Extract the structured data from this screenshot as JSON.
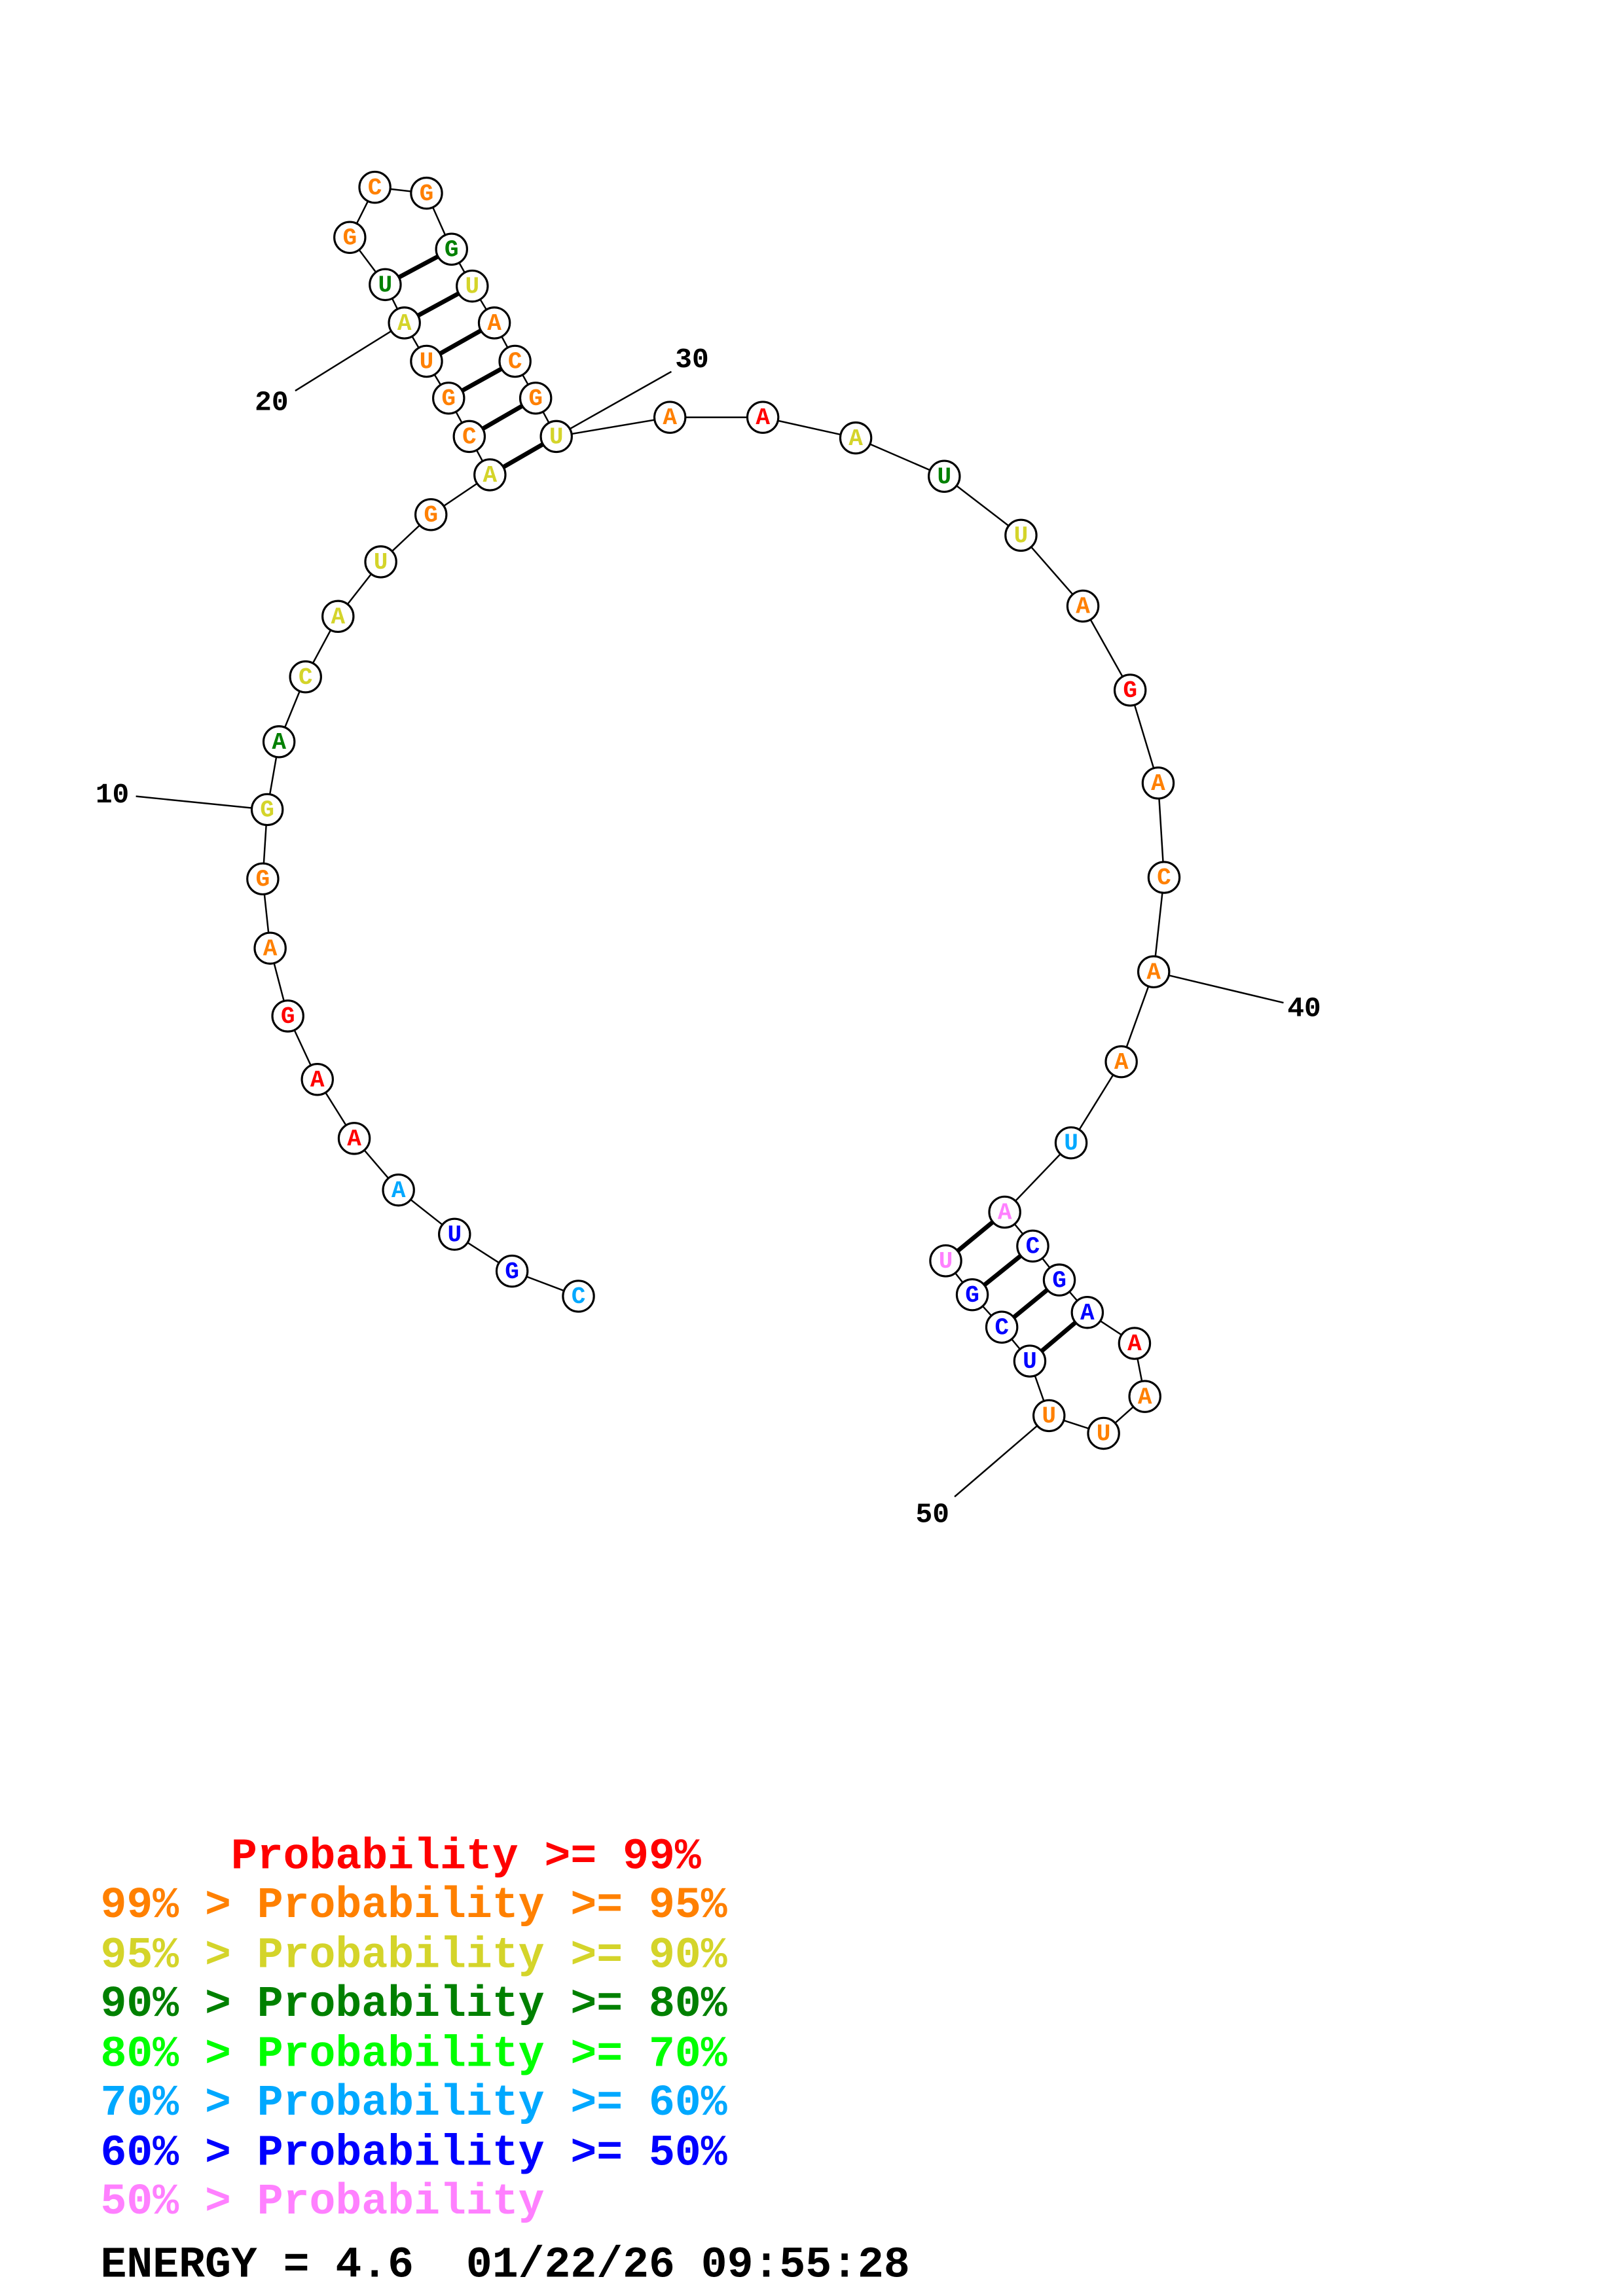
{
  "colors": {
    "p99": "#ff0000",
    "p95": "#ff8000",
    "p90": "#d4d42a",
    "p80": "#008000",
    "p70": "#00ff00",
    "p60": "#00a8ff",
    "p50": "#0000ff",
    "plow": "#ff80ff"
  },
  "sequence": [
    {
      "base": "C",
      "cls": "p60"
    },
    {
      "base": "G",
      "cls": "p50"
    },
    {
      "base": "U",
      "cls": "p50"
    },
    {
      "base": "A",
      "cls": "p60"
    },
    {
      "base": "A",
      "cls": "p99"
    },
    {
      "base": "A",
      "cls": "p99"
    },
    {
      "base": "G",
      "cls": "p99"
    },
    {
      "base": "A",
      "cls": "p95"
    },
    {
      "base": "G",
      "cls": "p95"
    },
    {
      "base": "G",
      "cls": "p90"
    },
    {
      "base": "A",
      "cls": "p80"
    },
    {
      "base": "C",
      "cls": "p90"
    },
    {
      "base": "A",
      "cls": "p90"
    },
    {
      "base": "U",
      "cls": "p90"
    },
    {
      "base": "G",
      "cls": "p95"
    },
    {
      "base": "A",
      "cls": "p90"
    },
    {
      "base": "C",
      "cls": "p95"
    },
    {
      "base": "G",
      "cls": "p95"
    },
    {
      "base": "U",
      "cls": "p95"
    },
    {
      "base": "A",
      "cls": "p90"
    },
    {
      "base": "U",
      "cls": "p80"
    },
    {
      "base": "G",
      "cls": "p95"
    },
    {
      "base": "C",
      "cls": "p95"
    },
    {
      "base": "G",
      "cls": "p95"
    },
    {
      "base": "G",
      "cls": "p80"
    },
    {
      "base": "U",
      "cls": "p90"
    },
    {
      "base": "A",
      "cls": "p95"
    },
    {
      "base": "C",
      "cls": "p95"
    },
    {
      "base": "G",
      "cls": "p95"
    },
    {
      "base": "U",
      "cls": "p90"
    },
    {
      "base": "A",
      "cls": "p95"
    },
    {
      "base": "A",
      "cls": "p99"
    },
    {
      "base": "A",
      "cls": "p90"
    },
    {
      "base": "U",
      "cls": "p80"
    },
    {
      "base": "U",
      "cls": "p90"
    },
    {
      "base": "A",
      "cls": "p95"
    },
    {
      "base": "G",
      "cls": "p99"
    },
    {
      "base": "A",
      "cls": "p95"
    },
    {
      "base": "C",
      "cls": "p95"
    },
    {
      "base": "A",
      "cls": "p95"
    },
    {
      "base": "A",
      "cls": "p95"
    },
    {
      "base": "U",
      "cls": "p60"
    },
    {
      "base": "A",
      "cls": "plow"
    },
    {
      "base": "C",
      "cls": "p50"
    },
    {
      "base": "G",
      "cls": "p50"
    },
    {
      "base": "A",
      "cls": "p50"
    },
    {
      "base": "A",
      "cls": "p99"
    },
    {
      "base": "A",
      "cls": "p95"
    },
    {
      "base": "U",
      "cls": "p95"
    },
    {
      "base": "U",
      "cls": "p95"
    },
    {
      "base": "U",
      "cls": "p50"
    },
    {
      "base": "C",
      "cls": "p50"
    },
    {
      "base": "G",
      "cls": "p50"
    },
    {
      "base": "U",
      "cls": "plow"
    }
  ],
  "pairs": [
    [
      16,
      30
    ],
    [
      17,
      29
    ],
    [
      18,
      28
    ],
    [
      19,
      27
    ],
    [
      20,
      26
    ],
    [
      21,
      25
    ],
    [
      43,
      54
    ],
    [
      44,
      53
    ],
    [
      45,
      52
    ],
    [
      46,
      51
    ]
  ],
  "position_labels": [
    "10",
    "20",
    "30",
    "40",
    "50"
  ],
  "legend": [
    {
      "text": "     Probability >= 99%",
      "cls": "p99"
    },
    {
      "text": "99% > Probability >= 95%",
      "cls": "p95"
    },
    {
      "text": "95% > Probability >= 90%",
      "cls": "p90"
    },
    {
      "text": "90% > Probability >= 80%",
      "cls": "p80"
    },
    {
      "text": "80% > Probability >= 70%",
      "cls": "p70"
    },
    {
      "text": "70% > Probability >= 60%",
      "cls": "p60"
    },
    {
      "text": "60% > Probability >= 50%",
      "cls": "p50"
    },
    {
      "text": "50% > Probability",
      "cls": "plow"
    }
  ],
  "footer": "ENERGY = 4.6  01/22/26 09:55:28"
}
